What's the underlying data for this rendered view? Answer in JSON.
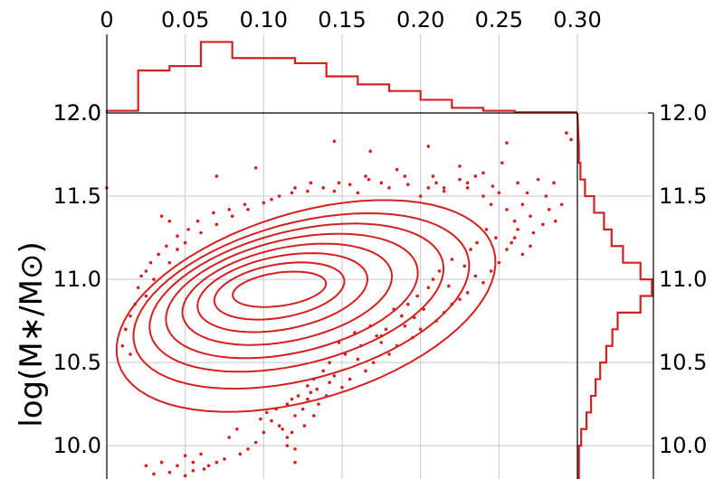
{
  "chart_data": {
    "type": "scatter",
    "title": "",
    "xlabel": "",
    "ylabel": "log(M∗/M⊙)",
    "xlim": [
      0,
      0.3
    ],
    "ylim": [
      9.8,
      12.0
    ],
    "x_ticks": [
      "0",
      "0.05",
      "0.10",
      "0.15",
      "0.20",
      "0.25",
      "0.30"
    ],
    "y_ticks": [
      "10.0",
      "10.5",
      "11.0",
      "11.5",
      "12.0"
    ],
    "x_tick_values": [
      0,
      0.05,
      0.1,
      0.15,
      0.2,
      0.25,
      0.3
    ],
    "y_tick_values": [
      10.0,
      10.5,
      11.0,
      11.5,
      12.0
    ],
    "top_hist_y_tick": "12.0",
    "grid": true,
    "color": "#d42020",
    "top_histogram": {
      "bin_edges": [
        0,
        0.02,
        0.04,
        0.06,
        0.08,
        0.12,
        0.14,
        0.16,
        0.18,
        0.2,
        0.22,
        0.24,
        0.26,
        0.3
      ],
      "values": [
        0.03,
        0.58,
        0.64,
        0.97,
        0.75,
        0.68,
        0.5,
        0.39,
        0.3,
        0.18,
        0.07,
        0.03,
        0.01
      ],
      "note": "relative heights"
    },
    "right_histogram": {
      "bin_edges": [
        9.8,
        9.9,
        10.0,
        10.1,
        10.2,
        10.3,
        10.4,
        10.5,
        10.6,
        10.7,
        10.8,
        10.9,
        11.0,
        11.1,
        11.2,
        11.3,
        11.4,
        11.5,
        11.6,
        11.7,
        11.8
      ],
      "values": [
        0.02,
        0.02,
        0.05,
        0.12,
        0.18,
        0.24,
        0.3,
        0.38,
        0.46,
        0.53,
        0.83,
        0.98,
        0.83,
        0.6,
        0.45,
        0.35,
        0.22,
        0.1,
        0.04,
        0.02
      ],
      "note": "relative widths"
    },
    "contours": [
      {
        "cx": 0.11,
        "cy": 10.94,
        "rx": 0.03,
        "ry": 0.1,
        "tilt": 8
      },
      {
        "cx": 0.11,
        "cy": 10.93,
        "rx": 0.042,
        "ry": 0.16,
        "tilt": 10
      },
      {
        "cx": 0.112,
        "cy": 10.92,
        "rx": 0.055,
        "ry": 0.22,
        "tilt": 11
      },
      {
        "cx": 0.115,
        "cy": 10.91,
        "rx": 0.068,
        "ry": 0.28,
        "tilt": 12
      },
      {
        "cx": 0.118,
        "cy": 10.9,
        "rx": 0.082,
        "ry": 0.34,
        "tilt": 13
      },
      {
        "cx": 0.121,
        "cy": 10.89,
        "rx": 0.096,
        "ry": 0.4,
        "tilt": 14
      },
      {
        "cx": 0.124,
        "cy": 10.87,
        "rx": 0.11,
        "ry": 0.47,
        "tilt": 15
      },
      {
        "cx": 0.127,
        "cy": 10.84,
        "rx": 0.125,
        "ry": 0.56,
        "tilt": 17
      }
    ],
    "scatter_points": [
      [
        0.145,
        11.83
      ],
      [
        0.168,
        11.77
      ],
      [
        0.205,
        11.8
      ],
      [
        0.255,
        11.82
      ],
      [
        0.293,
        11.88
      ],
      [
        0.296,
        11.84
      ],
      [
        0.095,
        11.67
      ],
      [
        0.07,
        11.62
      ],
      [
        0.035,
        11.38
      ],
      [
        0.04,
        11.35
      ],
      [
        0.155,
        11.57
      ],
      [
        0.18,
        11.55
      ],
      [
        0.19,
        11.62
      ],
      [
        0.2,
        11.5
      ],
      [
        0.21,
        11.58
      ],
      [
        0.215,
        11.53
      ],
      [
        0.225,
        11.6
      ],
      [
        0.23,
        11.55
      ],
      [
        0.235,
        11.62
      ],
      [
        0.24,
        11.5
      ],
      [
        0.245,
        11.45
      ],
      [
        0.25,
        11.52
      ],
      [
        0.255,
        11.42
      ],
      [
        0.26,
        11.35
      ],
      [
        0.262,
        11.3
      ],
      [
        0.265,
        11.45
      ],
      [
        0.27,
        11.38
      ],
      [
        0.275,
        11.6
      ],
      [
        0.28,
        11.5
      ],
      [
        0.282,
        11.42
      ],
      [
        0.285,
        11.58
      ],
      [
        0.175,
        11.58
      ],
      [
        0.16,
        11.52
      ],
      [
        0.13,
        11.58
      ],
      [
        0.12,
        11.55
      ],
      [
        0.11,
        11.5
      ],
      [
        0.1,
        11.46
      ],
      [
        0.09,
        11.42
      ],
      [
        0.08,
        11.38
      ],
      [
        0.07,
        11.33
      ],
      [
        0.06,
        11.28
      ],
      [
        0.05,
        11.22
      ],
      [
        0.045,
        11.18
      ],
      [
        0.04,
        11.1
      ],
      [
        0.03,
        11.0
      ],
      [
        0.025,
        11.05
      ],
      [
        0.02,
        10.95
      ],
      [
        0.018,
        10.85
      ],
      [
        0.015,
        10.78
      ],
      [
        0.225,
        11.68
      ],
      [
        0.24,
        11.64
      ],
      [
        0.252,
        11.7
      ],
      [
        0.262,
        11.58
      ],
      [
        0.208,
        11.62
      ],
      [
        0.185,
        11.66
      ],
      [
        0.167,
        11.6
      ],
      [
        0.145,
        11.53
      ],
      [
        0.26,
        11.25
      ],
      [
        0.255,
        11.18
      ],
      [
        0.25,
        11.1
      ],
      [
        0.245,
        11.05
      ],
      [
        0.24,
        10.98
      ],
      [
        0.235,
        11.02
      ],
      [
        0.23,
        10.92
      ],
      [
        0.225,
        10.88
      ],
      [
        0.22,
        10.85
      ],
      [
        0.215,
        10.8
      ],
      [
        0.21,
        10.75
      ],
      [
        0.2,
        10.7
      ],
      [
        0.195,
        10.65
      ],
      [
        0.19,
        10.72
      ],
      [
        0.185,
        10.6
      ],
      [
        0.18,
        10.55
      ],
      [
        0.175,
        10.62
      ],
      [
        0.17,
        10.5
      ],
      [
        0.165,
        10.45
      ],
      [
        0.16,
        10.52
      ],
      [
        0.155,
        10.4
      ],
      [
        0.15,
        10.35
      ],
      [
        0.145,
        10.42
      ],
      [
        0.14,
        10.3
      ],
      [
        0.135,
        10.25
      ],
      [
        0.13,
        10.32
      ],
      [
        0.125,
        10.22
      ],
      [
        0.12,
        10.18
      ],
      [
        0.115,
        10.25
      ],
      [
        0.11,
        10.12
      ],
      [
        0.105,
        10.15
      ],
      [
        0.115,
        10.05
      ],
      [
        0.115,
        10.0
      ],
      [
        0.12,
        9.98
      ],
      [
        0.1,
        10.08
      ],
      [
        0.095,
        10.02
      ],
      [
        0.09,
        9.98
      ],
      [
        0.085,
        9.95
      ],
      [
        0.075,
        9.92
      ],
      [
        0.07,
        9.9
      ],
      [
        0.065,
        9.88
      ],
      [
        0.06,
        9.95
      ],
      [
        0.055,
        9.85
      ],
      [
        0.05,
        9.82
      ],
      [
        0.045,
        9.88
      ],
      [
        0.04,
        9.84
      ],
      [
        0.03,
        9.83
      ],
      [
        0.035,
        9.9
      ],
      [
        0.025,
        9.88
      ],
      [
        0.055,
        9.9
      ],
      [
        0.062,
        9.86
      ],
      [
        0.05,
        9.94
      ],
      [
        0.27,
        11.2
      ],
      [
        0.265,
        11.15
      ],
      [
        0.258,
        11.22
      ],
      [
        0.272,
        11.28
      ],
      [
        0.278,
        11.33
      ],
      [
        0.242,
        11.3
      ],
      [
        0.236,
        11.22
      ],
      [
        0.22,
        11.12
      ],
      [
        0.212,
        11.05
      ],
      [
        0.205,
        10.95
      ],
      [
        0.198,
        10.9
      ],
      [
        0.202,
        10.82
      ],
      [
        0.188,
        10.78
      ],
      [
        0.178,
        10.7
      ],
      [
        0.172,
        10.66
      ],
      [
        0.162,
        10.6
      ],
      [
        0.152,
        10.55
      ],
      [
        0.142,
        10.5
      ],
      [
        0.138,
        10.45
      ],
      [
        0.132,
        10.4
      ],
      [
        0.128,
        10.36
      ],
      [
        0.122,
        10.3
      ],
      [
        0.118,
        10.28
      ],
      [
        0.108,
        10.22
      ],
      [
        0.102,
        10.2
      ],
      [
        0.098,
        10.16
      ],
      [
        0.083,
        10.1
      ],
      [
        0.078,
        10.05
      ],
      [
        0.215,
        11.55
      ],
      [
        0.148,
        11.58
      ],
      [
        0.138,
        11.55
      ],
      [
        0.128,
        11.53
      ],
      [
        0.118,
        11.52
      ],
      [
        0.105,
        11.48
      ],
      [
        0.088,
        11.45
      ],
      [
        0.078,
        11.42
      ],
      [
        0.068,
        11.4
      ],
      [
        0.058,
        11.35
      ],
      [
        0.052,
        11.3
      ],
      [
        0.045,
        11.26
      ],
      [
        0.038,
        11.2
      ],
      [
        0.033,
        11.15
      ],
      [
        0.028,
        11.1
      ],
      [
        0.022,
        11.02
      ],
      [
        0.165,
        11.62
      ],
      [
        0.192,
        11.57
      ],
      [
        0.205,
        11.55
      ],
      [
        0.23,
        11.58
      ],
      [
        0.246,
        11.56
      ],
      [
        0.268,
        11.52
      ],
      [
        0.29,
        11.45
      ],
      [
        0.286,
        11.35
      ],
      [
        0.025,
        10.9
      ],
      [
        0.012,
        10.7
      ],
      [
        0.01,
        10.6
      ],
      [
        0.015,
        10.55
      ],
      [
        0.248,
        11.25
      ],
      [
        0.232,
        11.18
      ],
      [
        0.228,
        11.08
      ],
      [
        0.208,
        11.0
      ],
      [
        0.192,
        10.85
      ],
      [
        0.183,
        10.82
      ],
      [
        0.168,
        10.72
      ],
      [
        0.158,
        10.68
      ],
      [
        0.148,
        10.62
      ],
      [
        0.218,
        10.96
      ],
      [
        0.196,
        10.77
      ],
      [
        0.175,
        10.66
      ],
      [
        0.132,
        10.18
      ],
      [
        0.126,
        10.12
      ],
      [
        0.118,
        10.08
      ],
      [
        0.112,
        10.1
      ],
      [
        0.128,
        10.28
      ],
      [
        0.134,
        10.34
      ],
      [
        0.142,
        10.38
      ],
      [
        0.12,
        9.9
      ],
      [
        0.0,
        11.55
      ]
    ]
  }
}
